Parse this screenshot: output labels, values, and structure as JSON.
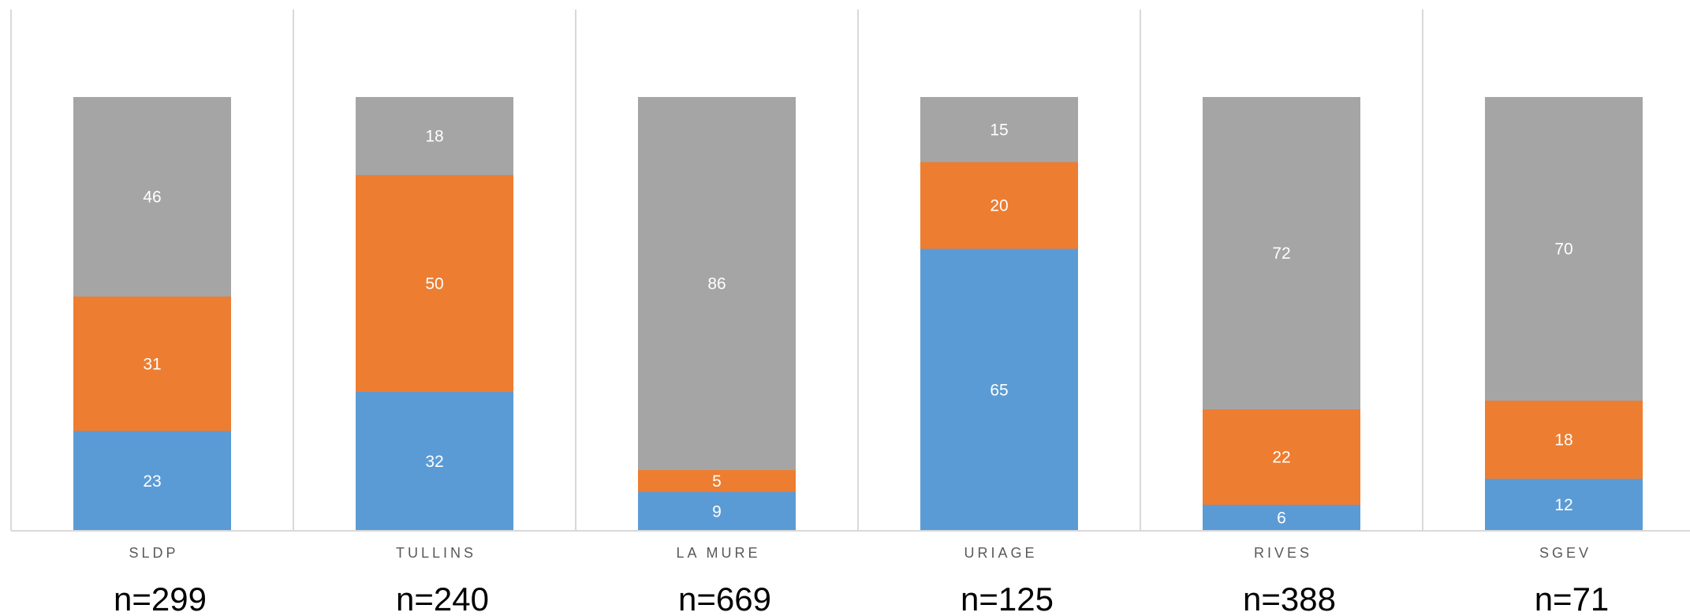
{
  "chart_data": {
    "type": "bar",
    "stacked": true,
    "percent_stacked": true,
    "categories": [
      "SLDP",
      "TULLINS",
      "LA MURE",
      "URIAGE",
      "RIVES",
      "SGEV"
    ],
    "sample_sizes": [
      "n=299",
      "n=240",
      "n=669",
      "n=125",
      "n=388",
      "n=71"
    ],
    "series": [
      {
        "color": "#5b9bd5",
        "values": [
          23,
          32,
          9,
          65,
          6,
          12
        ]
      },
      {
        "color": "#ed7d31",
        "values": [
          31,
          50,
          5,
          20,
          22,
          18
        ]
      },
      {
        "color": "#a5a5a5",
        "values": [
          46,
          18,
          86,
          15,
          72,
          70
        ]
      }
    ],
    "ylim": [
      0,
      100
    ],
    "title": "",
    "xlabel": "",
    "ylabel": "",
    "grid": false,
    "legend": "none",
    "colors": {
      "separator": "#d9d9d9",
      "axis": "#d9d9d9",
      "category_text": "#595959",
      "value_text": "#ffffff"
    }
  }
}
